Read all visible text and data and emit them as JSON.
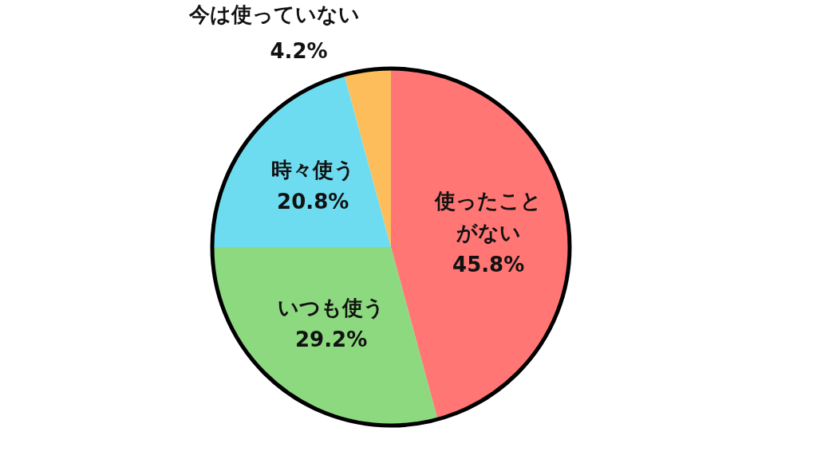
{
  "chart_data": {
    "type": "pie",
    "categories": [
      "使ったことがない",
      "いつも使う",
      "時々使う",
      "今は使っていない"
    ],
    "values": [
      45.8,
      29.2,
      20.8,
      4.2
    ],
    "value_labels": [
      "45.8%",
      "29.2%",
      "20.8%",
      "4.2%"
    ],
    "colors": [
      "#ff7674",
      "#8cd97f",
      "#6edcf0",
      "#fdbd5b"
    ],
    "legend": false
  }
}
